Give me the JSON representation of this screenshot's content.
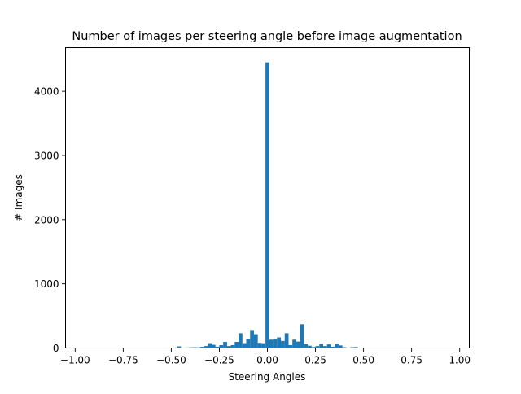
{
  "chart_data": {
    "type": "bar",
    "title": "Number of images per steering angle before image augmentation",
    "xlabel": "Steering Angles",
    "ylabel": "# Images",
    "xlim": [
      -1.05,
      1.05
    ],
    "ylim": [
      0,
      4680
    ],
    "xticks": [
      -1.0,
      -0.75,
      -0.5,
      -0.25,
      0.0,
      0.25,
      0.5,
      0.75,
      1.0
    ],
    "xtick_labels": [
      "−1.00",
      "−0.75",
      "−0.50",
      "−0.25",
      "0.00",
      "0.25",
      "0.50",
      "0.75",
      "1.00"
    ],
    "yticks": [
      0,
      1000,
      2000,
      3000,
      4000
    ],
    "ytick_labels": [
      "0",
      "1000",
      "2000",
      "3000",
      "4000"
    ],
    "bin_width": 0.02,
    "grid": false,
    "bar_color": "#1f77b4",
    "bins": [
      {
        "x": -0.52,
        "count": 3
      },
      {
        "x": -0.5,
        "count": 5
      },
      {
        "x": -0.46,
        "count": 25
      },
      {
        "x": -0.42,
        "count": 8
      },
      {
        "x": -0.4,
        "count": 10
      },
      {
        "x": -0.38,
        "count": 12
      },
      {
        "x": -0.36,
        "count": 10
      },
      {
        "x": -0.34,
        "count": 18
      },
      {
        "x": -0.32,
        "count": 30
      },
      {
        "x": -0.3,
        "count": 75
      },
      {
        "x": -0.28,
        "count": 50
      },
      {
        "x": -0.26,
        "count": 20
      },
      {
        "x": -0.24,
        "count": 45
      },
      {
        "x": -0.22,
        "count": 95
      },
      {
        "x": -0.2,
        "count": 30
      },
      {
        "x": -0.18,
        "count": 45
      },
      {
        "x": -0.16,
        "count": 95
      },
      {
        "x": -0.14,
        "count": 230
      },
      {
        "x": -0.12,
        "count": 75
      },
      {
        "x": -0.1,
        "count": 140
      },
      {
        "x": -0.08,
        "count": 280
      },
      {
        "x": -0.06,
        "count": 215
      },
      {
        "x": -0.04,
        "count": 80
      },
      {
        "x": -0.02,
        "count": 75
      },
      {
        "x": 0.0,
        "count": 4450
      },
      {
        "x": 0.02,
        "count": 130
      },
      {
        "x": 0.04,
        "count": 140
      },
      {
        "x": 0.06,
        "count": 165
      },
      {
        "x": 0.08,
        "count": 110
      },
      {
        "x": 0.1,
        "count": 230
      },
      {
        "x": 0.12,
        "count": 45
      },
      {
        "x": 0.14,
        "count": 130
      },
      {
        "x": 0.16,
        "count": 100
      },
      {
        "x": 0.18,
        "count": 370
      },
      {
        "x": 0.2,
        "count": 60
      },
      {
        "x": 0.22,
        "count": 35
      },
      {
        "x": 0.24,
        "count": 15
      },
      {
        "x": 0.26,
        "count": 30
      },
      {
        "x": 0.28,
        "count": 65
      },
      {
        "x": 0.3,
        "count": 30
      },
      {
        "x": 0.32,
        "count": 55
      },
      {
        "x": 0.34,
        "count": 20
      },
      {
        "x": 0.36,
        "count": 70
      },
      {
        "x": 0.38,
        "count": 40
      },
      {
        "x": 0.4,
        "count": 12
      },
      {
        "x": 0.42,
        "count": 5
      },
      {
        "x": 0.44,
        "count": 12
      },
      {
        "x": 0.46,
        "count": 15
      },
      {
        "x": 0.5,
        "count": 3
      }
    ]
  }
}
